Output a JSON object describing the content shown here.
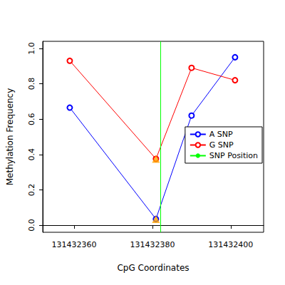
{
  "chart_data": {
    "type": "line",
    "x_label": "CpG Coordinates",
    "y_label": "Methylation Frequency",
    "x": [
      131432358.9,
      131432380.9,
      131432390,
      131432401.1
    ],
    "series": [
      {
        "name": "A SNP",
        "color": "#0000ff",
        "type": "line",
        "marker": "open_circle",
        "values": [
          0.665,
          0.035,
          0.62,
          0.95
        ]
      },
      {
        "name": "G SNP",
        "color": "#ff0000",
        "type": "line",
        "marker": "open_circle",
        "values": [
          0.93,
          0.375,
          0.89,
          0.82
        ]
      },
      {
        "name": "SNP Position",
        "color": "#00ff00",
        "type": "vline",
        "x": [
          131432382
        ]
      }
    ],
    "highlights": {
      "color": "#ffa500",
      "marker": "triangle",
      "x": [
        131432380.9,
        131432380.9
      ],
      "values": [
        0.035,
        0.375
      ]
    },
    "xlim": [
      131432352,
      131432408.4
    ],
    "xticks": [
      131432360,
      131432380,
      131432400
    ],
    "ylim": [
      -0.04,
      1.04
    ],
    "yticks": [
      {
        "value": 0,
        "label": "0.0"
      },
      0.2,
      0.4,
      0.6,
      0.8,
      {
        "value": 1,
        "label": "1.0"
      }
    ],
    "legend": "right",
    "grid": false
  }
}
